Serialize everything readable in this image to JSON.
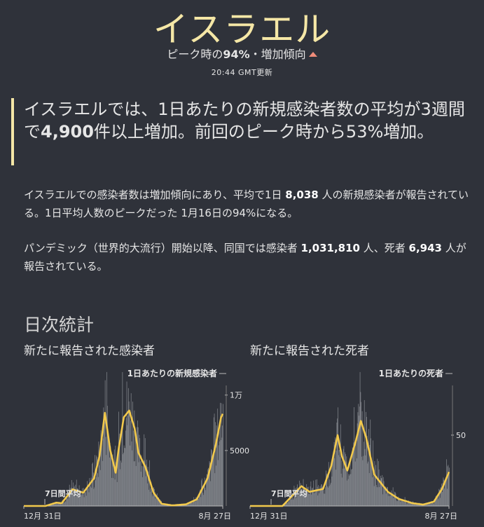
{
  "header": {
    "title": "イスラエル",
    "trend_prefix": "ピーク時の",
    "trend_pct": "94%",
    "trend_suffix": "・増加傾向",
    "updated": "20:44 GMT更新"
  },
  "summary": {
    "line_a": "イスラエルでは、1日あたりの新規感染者数の平均が3週間で",
    "line_bold": "4,900",
    "line_b": "件以上増加。前回のピーク時から53%増加。"
  },
  "paragraph1": {
    "a": "イスラエルでの感染者数は増加傾向にあり、平均で1日 ",
    "bold": "8,038",
    "b": " 人の新規感染者が報告されている。1日平均人数のピークだった 1月16日の94%になる。"
  },
  "paragraph2": {
    "a": "パンデミック（世界的大流行）開始以降、同国では感染者 ",
    "bold1": "1,031,810",
    "b": " 人、死者 ",
    "bold2": "6,943",
    "c": " 人が報告されている。"
  },
  "section_title": "日次統計",
  "charts": {
    "cases_title": "新たに報告された感染者",
    "deaths_title": "新たに報告された死者"
  },
  "chart_data": [
    {
      "type": "bar",
      "title": "新たに報告された感染者",
      "annotation": "1日あたりの新規感染者",
      "avg_label": "7日間平均",
      "x_start": "12月 31日",
      "x_end": "8月 27日",
      "ytick_labels": [
        "1万",
        "5000"
      ],
      "yticks": [
        10000,
        5000
      ],
      "ylim": [
        0,
        11500
      ],
      "colors": {
        "avg": "#f2c94c",
        "bars": "#8a8d93"
      },
      "avg_anchors": [
        [
          0,
          0
        ],
        [
          40,
          0
        ],
        [
          60,
          300
        ],
        [
          70,
          250
        ],
        [
          90,
          1500
        ],
        [
          110,
          1200
        ],
        [
          130,
          2500
        ],
        [
          140,
          4500
        ],
        [
          150,
          8400
        ],
        [
          160,
          5000
        ],
        [
          170,
          3000
        ],
        [
          175,
          5000
        ],
        [
          185,
          8000
        ],
        [
          195,
          8600
        ],
        [
          205,
          7000
        ],
        [
          212,
          4800
        ],
        [
          225,
          3500
        ],
        [
          240,
          1200
        ],
        [
          255,
          200
        ],
        [
          275,
          50
        ],
        [
          300,
          150
        ],
        [
          320,
          600
        ],
        [
          340,
          2500
        ],
        [
          355,
          5500
        ],
        [
          365,
          8000
        ],
        [
          368,
          8300
        ]
      ]
    },
    {
      "type": "bar",
      "title": "新たに報告された死者",
      "annotation": "1日あたりの死者",
      "avg_label": "7日間平均",
      "x_start": "12月 31日",
      "x_end": "8月 27日",
      "ytick_labels": [
        "50"
      ],
      "yticks": [
        50
      ],
      "ylim": [
        0,
        90
      ],
      "colors": {
        "avg": "#f2c94c",
        "bars": "#8a8d93"
      },
      "avg_anchors": [
        [
          0,
          0
        ],
        [
          60,
          0
        ],
        [
          80,
          8
        ],
        [
          95,
          14
        ],
        [
          110,
          10
        ],
        [
          135,
          12
        ],
        [
          150,
          28
        ],
        [
          162,
          50
        ],
        [
          170,
          35
        ],
        [
          180,
          25
        ],
        [
          195,
          45
        ],
        [
          205,
          60
        ],
        [
          215,
          48
        ],
        [
          230,
          22
        ],
        [
          255,
          10
        ],
        [
          275,
          5
        ],
        [
          300,
          2
        ],
        [
          320,
          1
        ],
        [
          340,
          3
        ],
        [
          355,
          12
        ],
        [
          368,
          24
        ]
      ]
    }
  ]
}
